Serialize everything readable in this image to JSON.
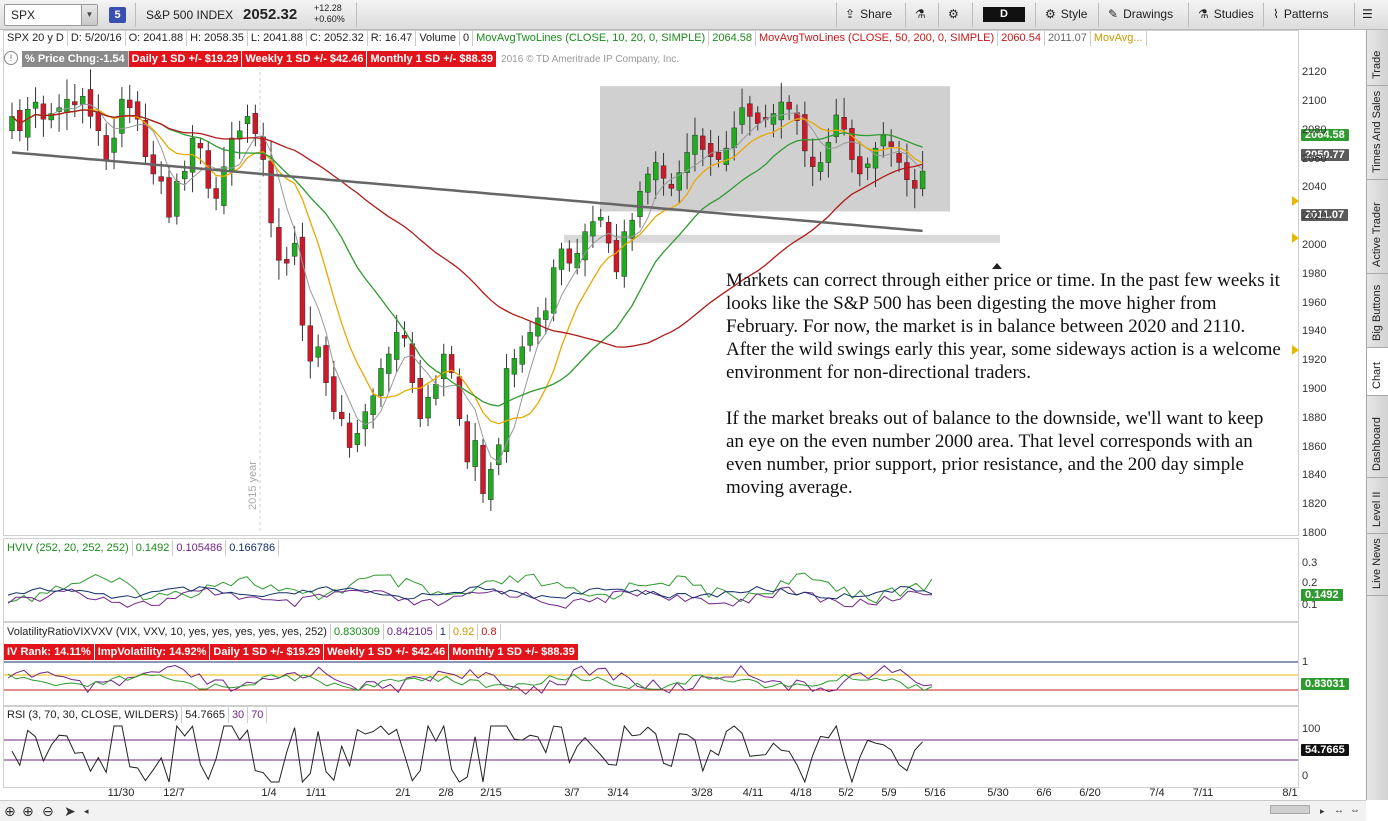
{
  "toolbar": {
    "symbol": "SPX",
    "link_number": "5",
    "instrument_name": "S&P 500 INDEX",
    "last_price": "2052.32",
    "net_change": "+12.28",
    "pct_change": "+0.60%",
    "share_label": "Share",
    "aggregation": "D",
    "style_label": "Style",
    "drawings_label": "Drawings",
    "studies_label": "Studies",
    "patterns_label": "Patterns"
  },
  "price_header": {
    "symbol_period": "SPX 20 y D",
    "date": "D: 5/20/16",
    "open": "O: 2041.88",
    "high": "H: 2058.35",
    "low": "L: 2041.88",
    "close": "C: 2052.32",
    "range": "R: 16.47",
    "volume_label": "Volume",
    "volume_value": "0",
    "ma_short_label": "MovAvgTwoLines (CLOSE, 10, 20, 0, SIMPLE)",
    "ma_short_value": "2064.58",
    "ma_long_label": "MovAvgTwoLines (CLOSE, 50, 200, 0, SIMPLE)",
    "ma_long_value1": "2060.54",
    "ma_long_value2": "2011.07",
    "ma_more": "MovAvg..."
  },
  "price_badges": {
    "pct_chng": "% Price Chng:-1.54",
    "daily_sd": "Daily 1 SD +/- $19.29",
    "weekly_sd": "Weekly 1 SD +/- $42.46",
    "monthly_sd": "Monthly 1 SD +/- $88.39",
    "copyright": "2016 © TD Ameritrade IP Company, Inc."
  },
  "price_axis": {
    "ticks": [
      "2120",
      "2100",
      "2080",
      "2060",
      "2040",
      "2020",
      "2000",
      "1980",
      "1960",
      "1940",
      "1920",
      "1900",
      "1880",
      "1860",
      "1840",
      "1820",
      "1800"
    ],
    "badge_ma10": "2064.58",
    "badge_last": "2050.77",
    "badge_ma200": "2011.07"
  },
  "year_label": "2015 year",
  "commentary": {
    "para1": "Markets can correct through either price or time.  In the past few weeks it looks like the S&P 500 has been digesting the move higher from February.  For now, the market is in balance between 2020 and 2110.  After the wild swings early this year, some sideways action is a welcome environment for non-directional traders.",
    "para2": "If the market breaks out of balance to the downside, we'll want to keep an eye on the even number 2000 area.  That level corresponds with an even number, prior support, prior resistance, and the 200 day simple moving average."
  },
  "hviv": {
    "label": "HVIV (252, 20, 252, 252)",
    "v1": "0.1492",
    "v2": "0.105486",
    "v3": "0.166786",
    "axis": [
      "0.3",
      "0.2",
      "0.1"
    ],
    "badge": "0.1492"
  },
  "vol_ratio": {
    "label": "VolatilityRatioVIXVXV (VIX, VXV, 10, yes, yes, yes, yes, yes, 252)",
    "v1": "0.830309",
    "v2": "0.842105",
    "v3": "1",
    "v4": "0.92",
    "v5": "0.8",
    "iv_rank": "IV Rank: 14.11%",
    "imp_vol": "ImpVolatility: 14.92%",
    "daily_sd": "Daily 1 SD +/- $19.29",
    "weekly_sd": "Weekly 1 SD +/- $42.46",
    "monthly_sd": "Monthly 1 SD +/- $88.39",
    "axis": [
      "1"
    ],
    "badge": "0.83031"
  },
  "rsi": {
    "label": "RSI (3, 70, 30, CLOSE, WILDERS)",
    "value": "54.7665",
    "lower": "30",
    "upper": "70",
    "axis": [
      "100",
      "0"
    ],
    "badge": "54.7665"
  },
  "x_axis": [
    "11/30",
    "12/7",
    "1/4",
    "1/11",
    "2/1",
    "2/8",
    "2/15",
    "3/7",
    "3/14",
    "3/28",
    "4/11",
    "4/18",
    "5/2",
    "5/9",
    "5/16",
    "5/30",
    "6/6",
    "6/20",
    "7/4",
    "7/11",
    "8/1"
  ],
  "side_tabs": [
    "Trade",
    "Times And Sales",
    "Active Trader",
    "Big Buttons",
    "Chart",
    "Dashboard",
    "Level II",
    "Live News"
  ],
  "colors": {
    "up_candle": "#22aa22",
    "down_candle": "#cc1a2a",
    "ma10": "#e8a800",
    "ma20": "#2f9a2f",
    "ma50": "#b01a1a",
    "ma200": "#666666",
    "ma_short_grey": "#999999",
    "badge_red": "#e0141a"
  },
  "chart_data": {
    "type": "candlestick",
    "symbol": "SPX",
    "ylim": [
      1800,
      2125
    ],
    "x_ticks": [
      "11/30",
      "12/7",
      "1/4",
      "1/11",
      "2/1",
      "2/8",
      "2/15",
      "3/7",
      "3/14",
      "3/28",
      "4/11",
      "4/18",
      "5/2",
      "5/9",
      "5/16",
      "5/30",
      "6/6",
      "6/20",
      "7/4",
      "7/11",
      "8/1"
    ],
    "close_series": [
      2090,
      2080,
      2095,
      2100,
      2088,
      2092,
      2096,
      2102,
      2098,
      2104,
      2090,
      2080,
      2060,
      2075,
      2102,
      2096,
      2088,
      2062,
      2050,
      2045,
      2020,
      2045,
      2052,
      2075,
      2068,
      2040,
      2033,
      2055,
      2075,
      2080,
      2090,
      2078,
      2060,
      2016,
      1990,
      1988,
      2002,
      1945,
      1920,
      1930,
      1905,
      1885,
      1880,
      1860,
      1870,
      1885,
      1896,
      1915,
      1925,
      1940,
      1936,
      1905,
      1880,
      1895,
      1904,
      1925,
      1912,
      1880,
      1850,
      1865,
      1828,
      1845,
      1862,
      1915,
      1922,
      1930,
      1940,
      1950,
      1955,
      1985,
      1998,
      1988,
      1995,
      2010,
      2017,
      2020,
      2002,
      1982,
      2010,
      2018,
      2038,
      2050,
      2058,
      2047,
      2040,
      2051,
      2065,
      2077,
      2067,
      2062,
      2060,
      2068,
      2082,
      2096,
      2090,
      2085,
      2088,
      2092,
      2100,
      2095,
      2087,
      2066,
      2055,
      2058,
      2072,
      2091,
      2081,
      2060,
      2050,
      2057,
      2068,
      2077,
      2069,
      2058,
      2046,
      2040,
      2052
    ],
    "ma10": "smoothed overlay (orange)",
    "ma20": "smoothed overlay (green)",
    "ma50": "smoothed overlay (dark red)",
    "ma200": "smoothed overlay (grey)",
    "balance_zone": [
      2024,
      2111
    ],
    "support_line": 2005
  }
}
